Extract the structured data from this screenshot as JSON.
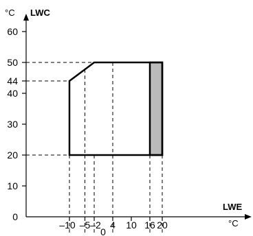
{
  "chart_data": {
    "type": "area",
    "title": "",
    "xlabel": "LWE",
    "xunit": "°C",
    "ylabel": "LWC",
    "yunit": "°C",
    "x_tick_values": [
      -10,
      -5,
      -2,
      0,
      4,
      10,
      16,
      20
    ],
    "x_tick_labels": [
      "–10",
      "–5",
      "–2",
      "0",
      "4",
      "10",
      "16",
      "20"
    ],
    "y_tick_values": [
      0,
      10,
      20,
      30,
      40,
      44,
      50,
      60
    ],
    "y_tick_labels": [
      "0",
      "10",
      "20",
      "30",
      "40",
      "44",
      "50",
      "60"
    ],
    "envelope": {
      "x": [
        -10,
        -10,
        -2,
        20,
        20,
        -10
      ],
      "y": [
        20,
        44,
        50,
        50,
        20,
        20
      ]
    },
    "shaded_region": {
      "x": [
        16,
        20
      ],
      "y": [
        20,
        50
      ],
      "color": "#bbbbbb"
    },
    "reference_lines": {
      "vertical_x": [
        -10,
        -5,
        -2,
        4,
        16,
        20
      ],
      "horizontal_y": [
        20,
        44,
        50
      ]
    },
    "line_color": "#000000",
    "grid": false
  }
}
